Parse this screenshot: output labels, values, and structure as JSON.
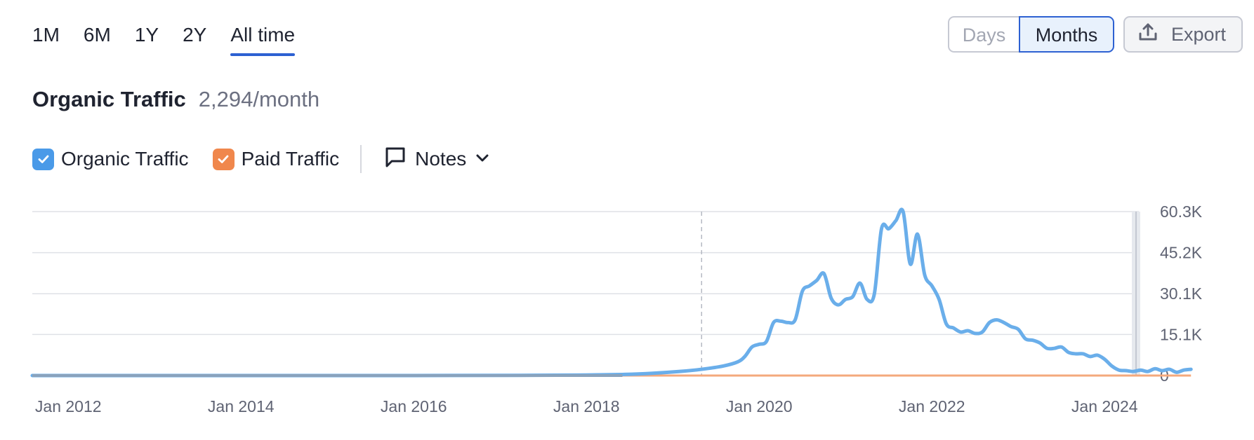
{
  "period_tabs": [
    {
      "label": "1M",
      "active": false
    },
    {
      "label": "6M",
      "active": false
    },
    {
      "label": "1Y",
      "active": false
    },
    {
      "label": "2Y",
      "active": false
    },
    {
      "label": "All time",
      "active": true
    }
  ],
  "granularity": {
    "days_label": "Days",
    "months_label": "Months",
    "selected": "Months"
  },
  "export_label": "Export",
  "heading": {
    "title": "Organic Traffic",
    "value": "2,294/month"
  },
  "legend": {
    "organic": {
      "label": "Organic Traffic",
      "color": "#4a9ae8",
      "checked": true
    },
    "paid": {
      "label": "Paid Traffic",
      "color": "#f0874c",
      "checked": true
    },
    "notes_label": "Notes"
  },
  "colors": {
    "accent": "#2d61d2",
    "organic_line": "#6aaeea",
    "paid_line": "#f4a97c",
    "grid": "#dfe1e6"
  },
  "chart_data": {
    "type": "line",
    "x_range": [
      "2011-08",
      "2024-06"
    ],
    "ylim": [
      0,
      60300
    ],
    "y_ticks": [
      0,
      15100,
      30100,
      45200,
      60300
    ],
    "y_tick_labels": [
      "0",
      "15.1K",
      "30.1K",
      "45.2K",
      "60.3K"
    ],
    "x_ticks": [
      "2012-01",
      "2014-01",
      "2016-01",
      "2018-01",
      "2020-01",
      "2022-01",
      "2024-01"
    ],
    "x_tick_labels": [
      "Jan 2012",
      "Jan 2014",
      "Jan 2016",
      "Jan 2018",
      "Jan 2020",
      "Jan 2022",
      "Jan 2024"
    ],
    "marker_date": "2019-05",
    "grid": true,
    "series": [
      {
        "name": "Organic Traffic",
        "color": "#6aaeea",
        "points": [
          [
            "2011-08",
            0
          ],
          [
            "2016-01",
            0
          ],
          [
            "2017-06",
            100
          ],
          [
            "2018-01",
            200
          ],
          [
            "2018-06",
            400
          ],
          [
            "2018-10",
            800
          ],
          [
            "2019-02",
            1500
          ],
          [
            "2019-05",
            2300
          ],
          [
            "2019-08",
            3500
          ],
          [
            "2019-10",
            5000
          ],
          [
            "2019-11",
            7000
          ],
          [
            "2019-12",
            10500
          ],
          [
            "2020-01",
            11500
          ],
          [
            "2020-02",
            12500
          ],
          [
            "2020-03",
            19500
          ],
          [
            "2020-04",
            20000
          ],
          [
            "2020-05",
            19500
          ],
          [
            "2020-06",
            20500
          ],
          [
            "2020-07",
            31000
          ],
          [
            "2020-08",
            33000
          ],
          [
            "2020-09",
            35000
          ],
          [
            "2020-10",
            37500
          ],
          [
            "2020-11",
            28500
          ],
          [
            "2020-12",
            26000
          ],
          [
            "2021-01",
            28000
          ],
          [
            "2021-02",
            29000
          ],
          [
            "2021-03",
            34000
          ],
          [
            "2021-04",
            28000
          ],
          [
            "2021-05",
            30000
          ],
          [
            "2021-06",
            54000
          ],
          [
            "2021-07",
            54000
          ],
          [
            "2021-08",
            57000
          ],
          [
            "2021-09",
            60300
          ],
          [
            "2021-10",
            41000
          ],
          [
            "2021-11",
            52000
          ],
          [
            "2021-12",
            37000
          ],
          [
            "2022-01",
            33000
          ],
          [
            "2022-02",
            28000
          ],
          [
            "2022-03",
            19000
          ],
          [
            "2022-04",
            17500
          ],
          [
            "2022-05",
            16000
          ],
          [
            "2022-06",
            16500
          ],
          [
            "2022-07",
            15500
          ],
          [
            "2022-08",
            16000
          ],
          [
            "2022-09",
            19500
          ],
          [
            "2022-10",
            20500
          ],
          [
            "2022-11",
            19500
          ],
          [
            "2022-12",
            18000
          ],
          [
            "2023-01",
            17000
          ],
          [
            "2023-02",
            13500
          ],
          [
            "2023-03",
            13000
          ],
          [
            "2023-04",
            12000
          ],
          [
            "2023-05",
            10000
          ],
          [
            "2023-06",
            10000
          ],
          [
            "2023-07",
            10500
          ],
          [
            "2023-08",
            8500
          ],
          [
            "2023-09",
            8000
          ],
          [
            "2023-10",
            8000
          ],
          [
            "2023-11",
            7000
          ],
          [
            "2023-12",
            7500
          ],
          [
            "2024-01",
            6000
          ],
          [
            "2024-02",
            3500
          ],
          [
            "2024-03",
            2000
          ],
          [
            "2024-04",
            1800
          ],
          [
            "2024-05",
            1500
          ],
          [
            "2024-06",
            2000
          ],
          [
            "2024-07",
            1500
          ],
          [
            "2024-08",
            2500
          ],
          [
            "2024-09",
            1800
          ],
          [
            "2024-10",
            2300
          ],
          [
            "2024-11",
            1200
          ],
          [
            "2024-12",
            2000
          ],
          [
            "2025-01",
            2294
          ]
        ]
      },
      {
        "name": "Paid Traffic",
        "color": "#f4a97c",
        "points": [
          [
            "2011-08",
            0
          ],
          [
            "2025-01",
            0
          ]
        ]
      }
    ]
  }
}
